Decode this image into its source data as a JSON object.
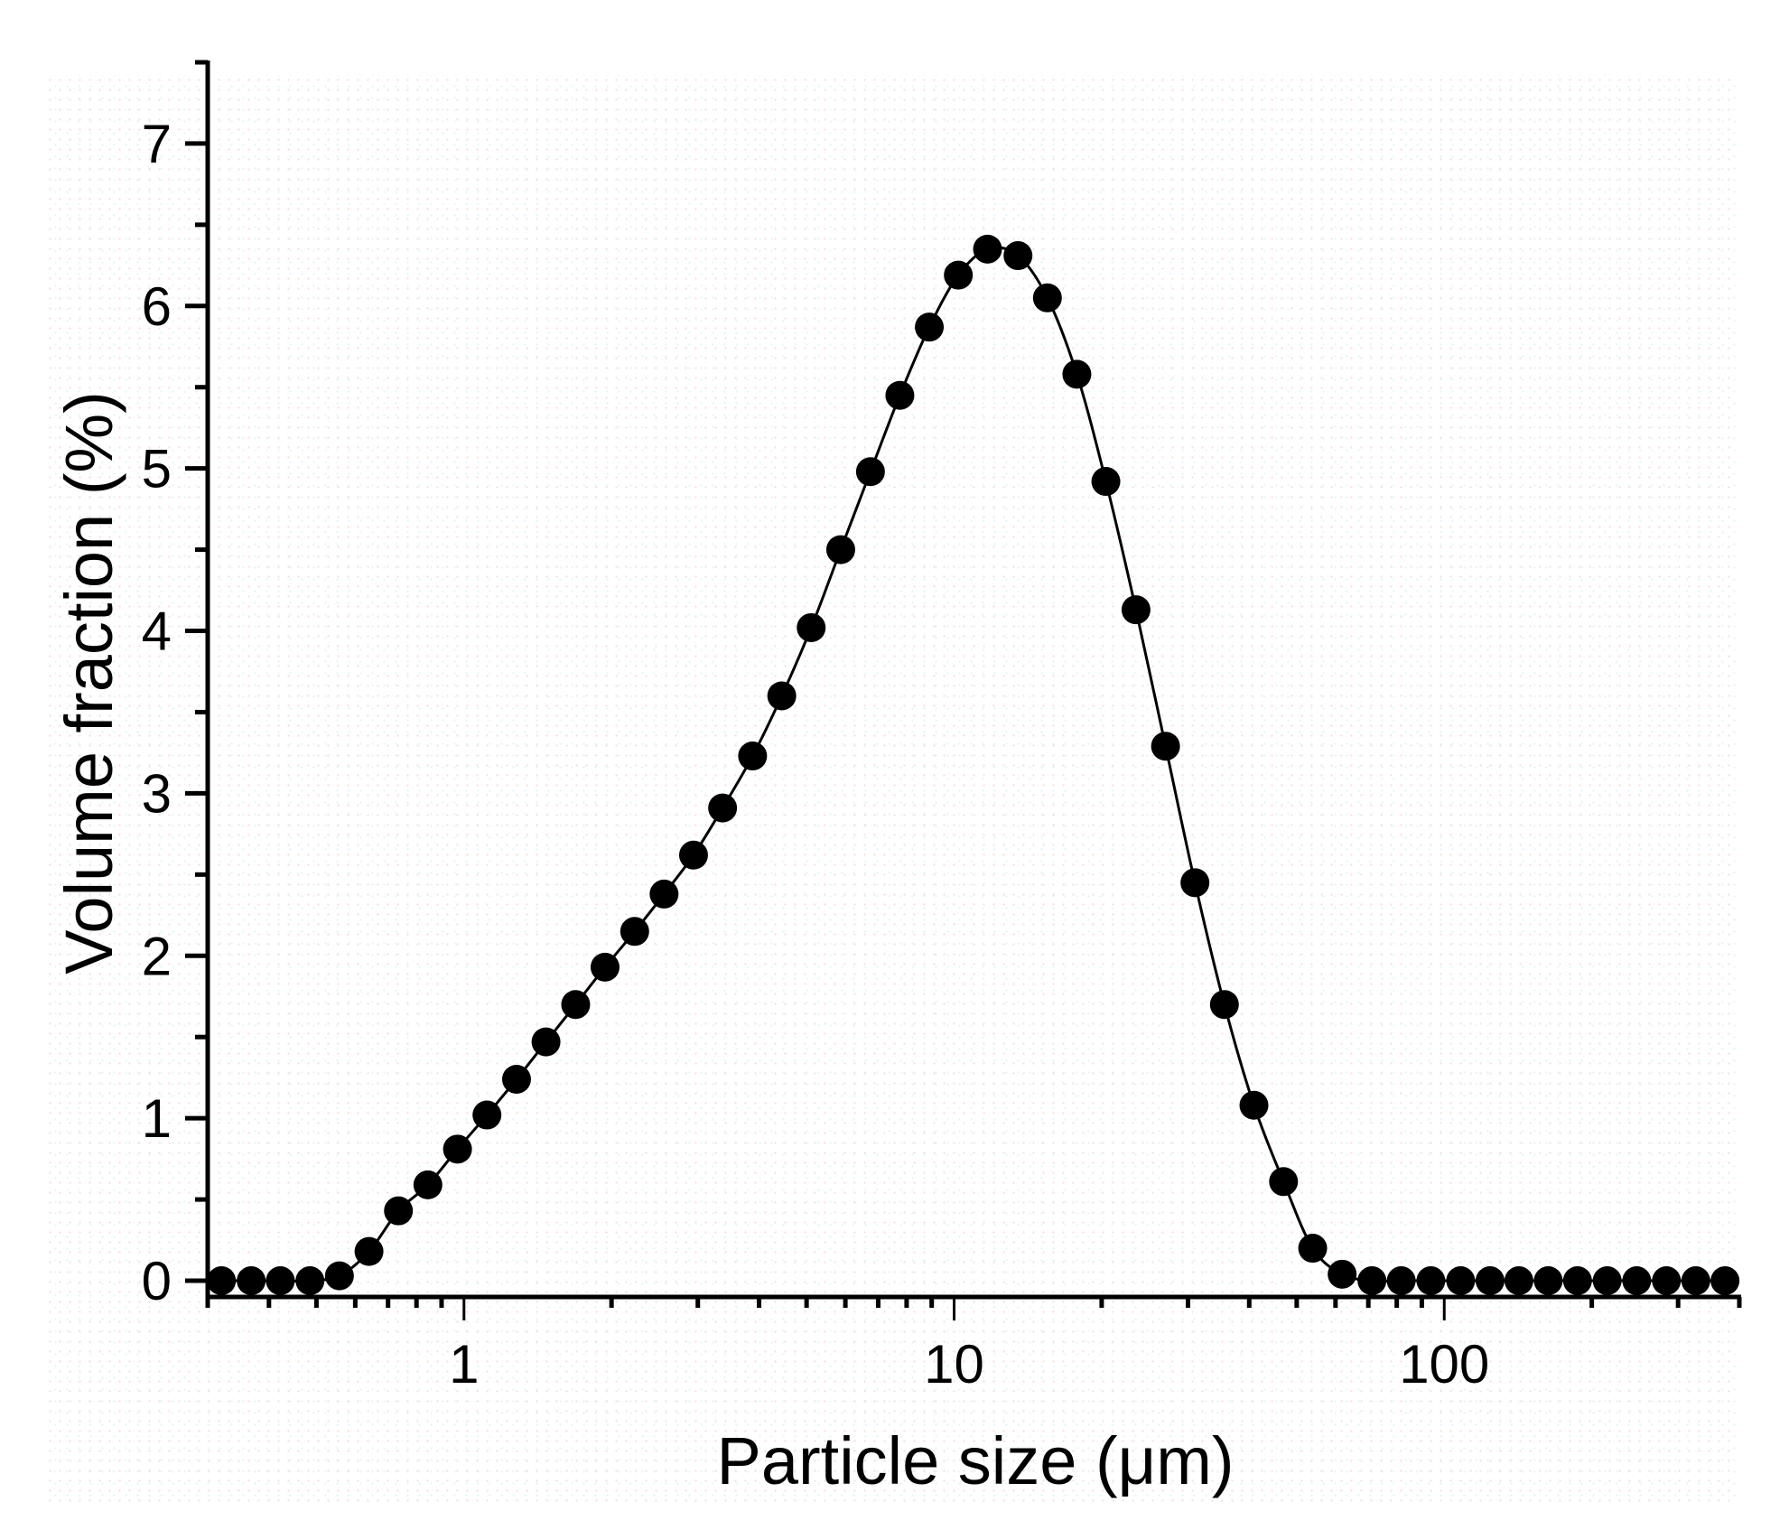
{
  "chart_data": {
    "type": "scatter",
    "style": "line+markers",
    "title": "",
    "xlabel": "Particle size (μm)",
    "ylabel": "Volume fraction (%)",
    "xscale": "log",
    "xlim": [
      0.3,
      400
    ],
    "ylim": [
      -0.1,
      7.5
    ],
    "grid": false,
    "legend": null,
    "x_ticks": [
      1,
      10,
      100
    ],
    "x_tick_labels": [
      "1",
      "10",
      "100"
    ],
    "y_ticks": [
      0,
      1,
      2,
      3,
      4,
      5,
      6,
      7
    ],
    "y_tick_labels": [
      "0",
      "1",
      "2",
      "3",
      "4",
      "5",
      "6",
      "7"
    ],
    "marker_color": "#000000",
    "line_color": "#000000",
    "series": [
      {
        "name": "Volume fraction",
        "x": [
          0.32,
          0.368,
          0.422,
          0.485,
          0.557,
          0.64,
          0.735,
          0.844,
          0.97,
          1.114,
          1.28,
          1.47,
          1.69,
          1.94,
          2.23,
          2.56,
          2.94,
          3.37,
          3.88,
          4.45,
          5.11,
          5.87,
          6.75,
          7.75,
          8.9,
          10.2,
          11.7,
          13.5,
          15.5,
          17.8,
          20.4,
          23.5,
          27.0,
          31.0,
          35.6,
          40.9,
          47.0,
          53.9,
          61.9,
          71.2,
          81.7,
          93.9,
          108,
          124,
          142,
          163,
          187,
          215,
          247,
          284,
          326,
          374
        ],
        "y": [
          0,
          0,
          0,
          0,
          0.03,
          0.18,
          0.43,
          0.59,
          0.81,
          1.02,
          1.24,
          1.47,
          1.7,
          1.93,
          2.15,
          2.38,
          2.62,
          2.91,
          3.23,
          3.6,
          4.02,
          4.5,
          4.98,
          5.45,
          5.87,
          6.19,
          6.35,
          6.31,
          6.05,
          5.58,
          4.92,
          4.13,
          3.29,
          2.45,
          1.7,
          1.08,
          0.61,
          0.2,
          0.04,
          0,
          0,
          0,
          0,
          0,
          0,
          0,
          0,
          0,
          0,
          0,
          0,
          0
        ]
      }
    ]
  },
  "axes": {
    "x_title": "Particle size (μm)",
    "y_title": "Volume fraction (%)"
  }
}
